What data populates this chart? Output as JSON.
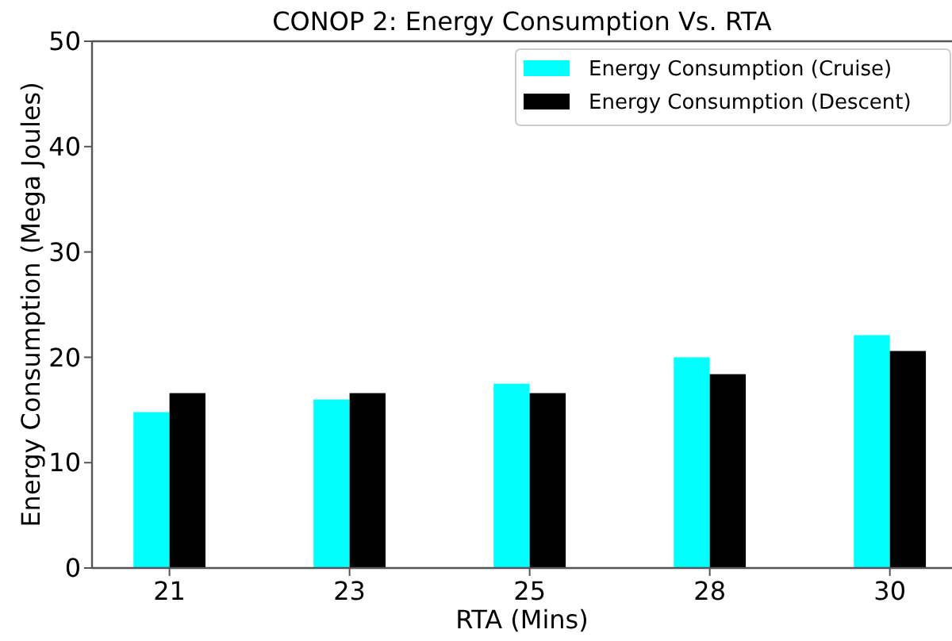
{
  "chart_data": {
    "type": "bar",
    "title": "CONOP 2: Energy Consumption Vs. RTA",
    "xlabel": "RTA (Mins)",
    "ylabel": "Energy Consumption (Mega Joules)",
    "categories": [
      "21",
      "23",
      "25",
      "28",
      "30"
    ],
    "series": [
      {
        "name": "Energy Consumption (Cruise)",
        "color": "#00ffff",
        "values": [
          14.8,
          16.0,
          17.5,
          20.0,
          22.1
        ]
      },
      {
        "name": "Energy Consumption (Descent)",
        "color": "#000000",
        "values": [
          16.6,
          16.6,
          16.6,
          18.4,
          20.6
        ]
      }
    ],
    "ylim": [
      0,
      50
    ],
    "yticks": [
      0,
      10,
      20,
      30,
      40,
      50
    ],
    "legend": "top right",
    "grid": false
  }
}
